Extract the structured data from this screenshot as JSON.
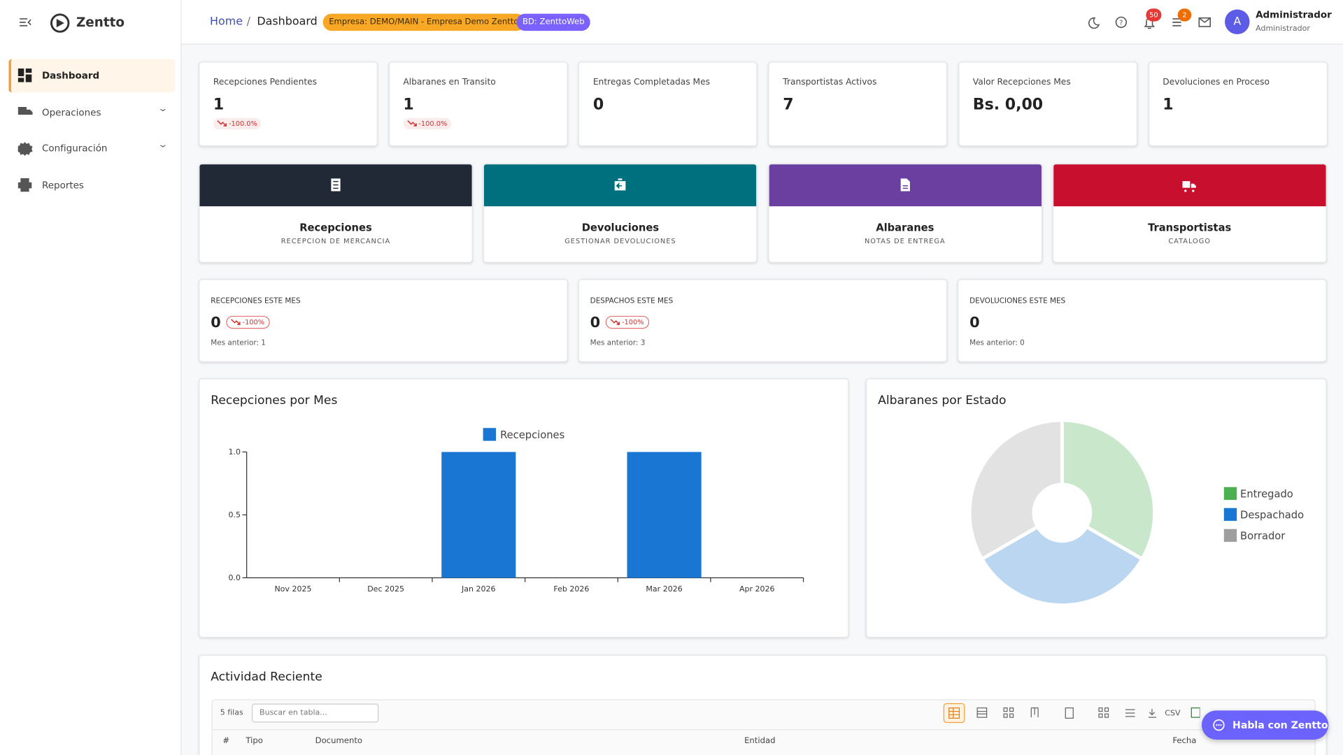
{
  "sidebar": {
    "brand": "Zentto",
    "nav": [
      "Dashboard",
      "Operaciones",
      "Configuración",
      "Reportes"
    ]
  },
  "header": {
    "breadcrumb": [
      "Home",
      "Dashboard"
    ],
    "company_badge": "Empresa: DEMO/MAIN - Empresa Demo Zentto",
    "db_badge": "BD: ZenttoWeb",
    "notifications": "50",
    "tasks": "2",
    "avatar": "A",
    "user_name": "Administrador",
    "user_role": "Administrador"
  },
  "kpis": [
    {
      "label": "Recepciones Pendientes",
      "value": "1",
      "change": "-100.0%"
    },
    {
      "label": "Albaranes en Transito",
      "value": "1",
      "change": "-100.0%"
    },
    {
      "label": "Entregas Completadas Mes",
      "value": "0"
    },
    {
      "label": "Transportistas Activos",
      "value": "7"
    },
    {
      "label": "Valor Recepciones Mes",
      "value": "Bs. 0,00"
    },
    {
      "label": "Devoluciones en Proceso",
      "value": "1"
    }
  ],
  "modules": [
    {
      "title": "Recepciones",
      "subtitle": "RECEPCION DE MERCANCIA"
    },
    {
      "title": "Devoluciones",
      "subtitle": "GESTIONAR DEVOLUCIONES"
    },
    {
      "title": "Albaranes",
      "subtitle": "NOTAS DE ENTREGA"
    },
    {
      "title": "Transportistas",
      "subtitle": "CATALOGO"
    }
  ],
  "monthly": [
    {
      "label": "RECEPCIONES ESTE MES",
      "value": "0",
      "change": "-100%",
      "previous": "Mes anterior: 1"
    },
    {
      "label": "DESPACHOS ESTE MES",
      "value": "0",
      "change": "-100%",
      "previous": "Mes anterior: 3"
    },
    {
      "label": "DEVOLUCIONES ESTE MES",
      "value": "0",
      "previous": "Mes anterior: 0"
    }
  ],
  "chart_data": [
    {
      "type": "bar",
      "title": "Recepciones por Mes",
      "categories": [
        "Nov 2025",
        "Dec 2025",
        "Jan 2026",
        "Feb 2026",
        "Mar 2026",
        "Apr 2026"
      ],
      "series": [
        {
          "name": "Recepciones",
          "color": "#1976d2",
          "values": [
            0,
            0,
            1,
            0,
            1,
            0
          ]
        }
      ],
      "ylim": [
        0,
        1
      ],
      "yticks": [
        {
          "value": 0,
          "label": "0.0"
        },
        {
          "value": 0.5,
          "label": "0.5"
        },
        {
          "value": 1,
          "label": "1.0"
        }
      ]
    },
    {
      "type": "donut",
      "title": "Albaranes por Estado",
      "categories": [
        "Entregado",
        "Despachado",
        "Borrador"
      ],
      "values": [
        1,
        1,
        1
      ],
      "colors": [
        "#4caf50",
        "#1976d2",
        "#9e9e9e"
      ],
      "legend": "right"
    }
  ],
  "activity": {
    "title": "Actividad Reciente",
    "rows": "5 filas",
    "search_placeholder": "Buscar en tabla...",
    "csv": "CSV",
    "columns": [
      "#",
      "Tipo",
      "Documento",
      "Entidad",
      "Fecha"
    ]
  },
  "chat_button": "Habla con Zentto"
}
